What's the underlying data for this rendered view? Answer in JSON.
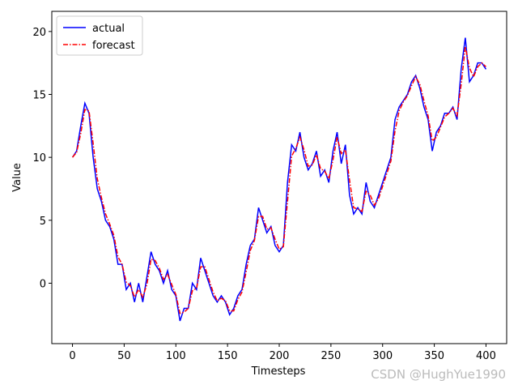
{
  "chart_data": {
    "type": "line",
    "xlabel": "Timesteps",
    "ylabel": "Value",
    "x": [
      0,
      4,
      8,
      12,
      16,
      20,
      24,
      28,
      32,
      36,
      40,
      44,
      48,
      52,
      56,
      60,
      64,
      68,
      72,
      76,
      80,
      84,
      88,
      92,
      96,
      100,
      104,
      108,
      112,
      116,
      120,
      124,
      128,
      132,
      136,
      140,
      144,
      148,
      152,
      156,
      160,
      164,
      168,
      172,
      176,
      180,
      184,
      188,
      192,
      196,
      200,
      204,
      208,
      212,
      216,
      220,
      224,
      228,
      232,
      236,
      240,
      244,
      248,
      252,
      256,
      260,
      264,
      268,
      272,
      276,
      280,
      284,
      288,
      292,
      296,
      300,
      304,
      308,
      312,
      316,
      320,
      324,
      328,
      332,
      336,
      340,
      344,
      348,
      352,
      356,
      360,
      364,
      368,
      372,
      376,
      380,
      384,
      388,
      392,
      396,
      400
    ],
    "series": [
      {
        "name": "actual",
        "color": "#0000ff",
        "dash": "solid",
        "values": [
          10,
          10.5,
          12.5,
          14.3,
          13.5,
          10,
          7.5,
          6.5,
          5,
          4.5,
          3.5,
          1.5,
          1.5,
          -0.5,
          0,
          -1.5,
          0,
          -1.5,
          0.5,
          2.5,
          1.5,
          1,
          0,
          1,
          -0.5,
          -1,
          -3,
          -2,
          -2,
          0,
          -0.5,
          2,
          1,
          0,
          -1,
          -1.5,
          -1,
          -1.5,
          -2.5,
          -2,
          -1,
          -0.5,
          1.5,
          3,
          3.5,
          6,
          5,
          4,
          4.5,
          3,
          2.5,
          3,
          8,
          11,
          10.5,
          12,
          10,
          9,
          9.5,
          10.5,
          8.5,
          9,
          8,
          10.5,
          12,
          9.5,
          11,
          7,
          5.5,
          6,
          5.5,
          8,
          6.5,
          6,
          7,
          8,
          9,
          10,
          13,
          14,
          14.5,
          15,
          16,
          16.5,
          15.5,
          14,
          13,
          10.5,
          12,
          12.5,
          13.5,
          13.5,
          14,
          13,
          17,
          19.5,
          16,
          16.5,
          17.5,
          17.5,
          17
        ]
      },
      {
        "name": "forecast",
        "color": "#ff0000",
        "dash": "dashdot",
        "values": [
          10,
          10.4,
          11.9,
          13.8,
          13.7,
          11.1,
          8.3,
          6.8,
          5.5,
          4.7,
          3.8,
          2.1,
          1.5,
          0.1,
          -0.2,
          -1.1,
          -0.5,
          -1.1,
          -0.1,
          1.9,
          1.8,
          1.2,
          0.3,
          0.7,
          -0.1,
          -0.9,
          -2.4,
          -2.3,
          -2,
          -0.6,
          -0.4,
          1.3,
          1.3,
          0.3,
          -0.7,
          -1.4,
          -1.2,
          -1.4,
          -2.2,
          -2.2,
          -1.3,
          -0.7,
          0.9,
          2.6,
          3.4,
          5.3,
          5.3,
          4.3,
          4.4,
          3.5,
          2.7,
          2.9,
          6.5,
          10.1,
          10.7,
          11.6,
          10.6,
          9.3,
          9.4,
          10.2,
          9.1,
          8.9,
          8.3,
          9.8,
          11.6,
          10.3,
          10.6,
          8.2,
          6,
          5.9,
          5.7,
          7.3,
          7,
          6.2,
          6.7,
          7.7,
          8.7,
          9.7,
          12.1,
          13.7,
          14.4,
          14.9,
          15.7,
          16.4,
          15.8,
          14.5,
          13.3,
          11.3,
          11.6,
          12.4,
          13.2,
          13.5,
          13.9,
          13.3,
          15.8,
          18.8,
          17.1,
          16.4,
          17.2,
          17.5,
          17.2
        ]
      }
    ],
    "xlim": [
      -20,
      420
    ],
    "ylim": [
      -4.8,
      21.6
    ],
    "xticks": [
      0,
      50,
      100,
      150,
      200,
      250,
      300,
      350,
      400
    ],
    "yticks": [
      0,
      5,
      10,
      15,
      20
    ],
    "legend": "upper-left",
    "grid": false,
    "annotation": "CSDN @HughYue1990"
  }
}
